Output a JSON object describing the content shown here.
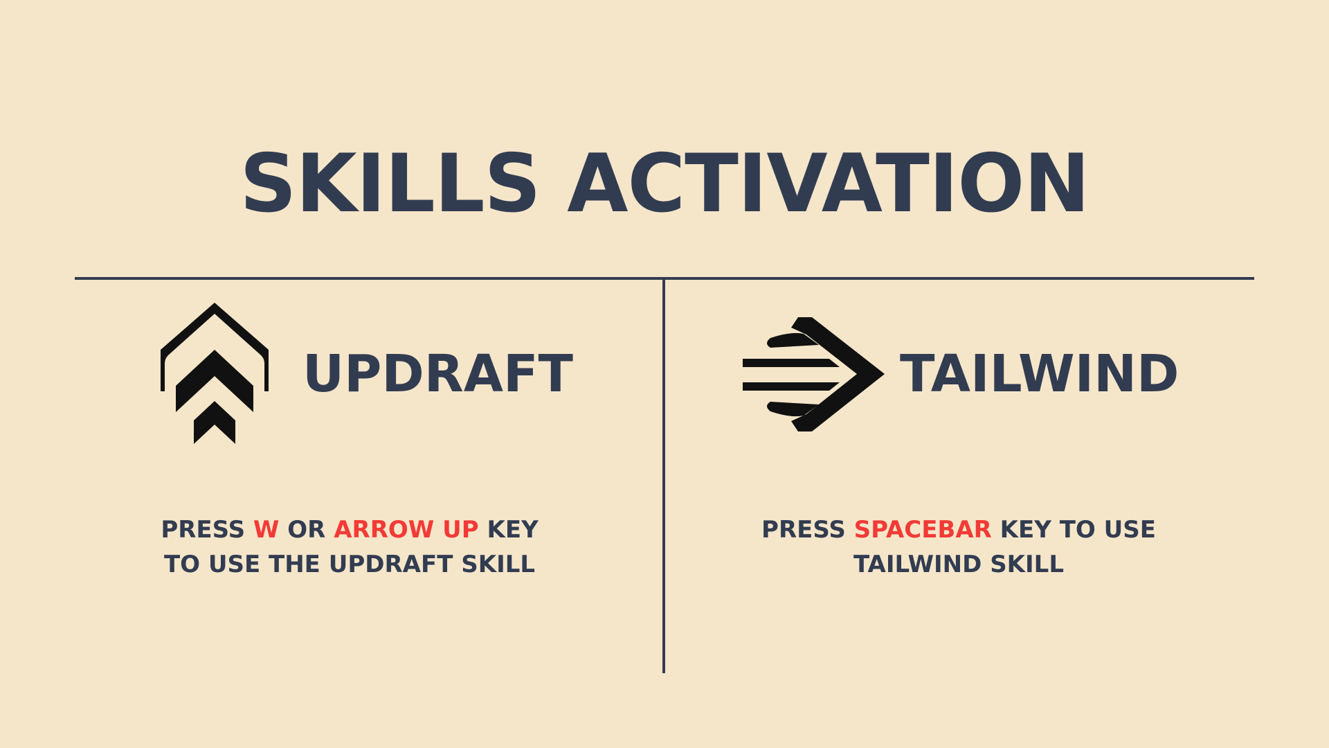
{
  "title": "SKILLS ACTIVATION",
  "colors": {
    "background": "#f5e6ca",
    "text": "#323c51",
    "key_highlight": "#f23a36",
    "icon": "#111111"
  },
  "skills": [
    {
      "name": "UPDRAFT",
      "icon": "updraft-chevrons-icon",
      "instruction": {
        "line1": {
          "t1": "PRESS ",
          "k1": "W",
          "t2": " OR ",
          "k2": "ARROW UP",
          "t3": " KEY"
        },
        "line2": "TO USE THE UPDRAFT SKILL"
      }
    },
    {
      "name": "TAILWIND",
      "icon": "tailwind-arrow-icon",
      "instruction": {
        "line1": {
          "t1": "PRESS ",
          "k1": "SPACEBAR",
          "t2": " KEY TO USE"
        },
        "line2": "TAILWIND SKILL"
      }
    }
  ]
}
